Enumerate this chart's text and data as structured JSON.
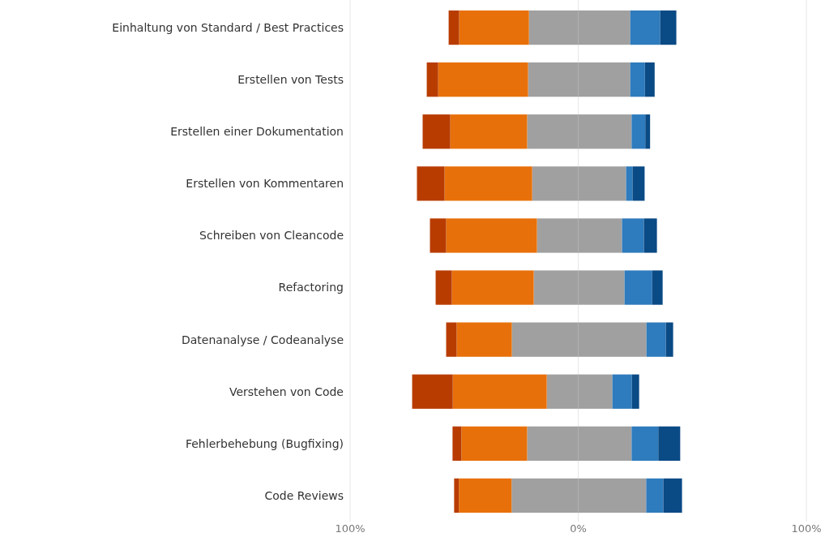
{
  "chart_data": {
    "type": "bar",
    "orientation": "horizontal",
    "stacked": true,
    "categories": [
      "Einhaltung von Standard / Best Practices",
      "Erstellen von Tests",
      "Erstellen einer Dokumentation",
      "Erstellen von Kommentaren",
      "Schreiben von Cleancode",
      "Refactoring",
      "Datenanalyse / Codeanalyse",
      "Verstehen von Code",
      "Fehlerbehebung (Bugfixing)",
      "Code Reviews"
    ],
    "series": [
      {
        "color": "#a0a0a0",
        "values": [
          -21.6,
          -22.0,
          -22.4,
          -20.2,
          -18.1,
          -19.5,
          -29.1,
          -13.8,
          -22.4,
          -29.2
        ]
      },
      {
        "color": "#e8700a",
        "values": [
          -30.6,
          -39.4,
          -33.7,
          -38.4,
          -39.8,
          -35.9,
          -24.2,
          -41.2,
          -28.8,
          -23.1
        ]
      },
      {
        "color": "#b83c00",
        "values": [
          -4.6,
          -5.0,
          -12.1,
          -12.1,
          -7.1,
          -7.1,
          -4.6,
          -17.8,
          -3.9,
          -2.1
        ]
      },
      {
        "color": "#a0a0a0",
        "values": [
          22.8,
          22.8,
          23.4,
          21.0,
          19.2,
          20.3,
          29.9,
          15.0,
          23.4,
          29.8
        ]
      },
      {
        "color": "#2e7bbd",
        "values": [
          13.1,
          6.4,
          6.0,
          2.8,
          9.6,
          12.1,
          8.5,
          8.5,
          11.7,
          7.5
        ]
      },
      {
        "color": "#0a4a85",
        "values": [
          7.1,
          4.3,
          2.1,
          5.3,
          5.7,
          4.6,
          3.2,
          3.2,
          9.6,
          8.2
        ]
      }
    ],
    "xlim": [
      -100,
      100
    ],
    "xticks": [
      {
        "value": -100,
        "label": "100%"
      },
      {
        "value": 0,
        "label": "0%"
      },
      {
        "value": 100,
        "label": "100%"
      }
    ],
    "grid": "x"
  }
}
